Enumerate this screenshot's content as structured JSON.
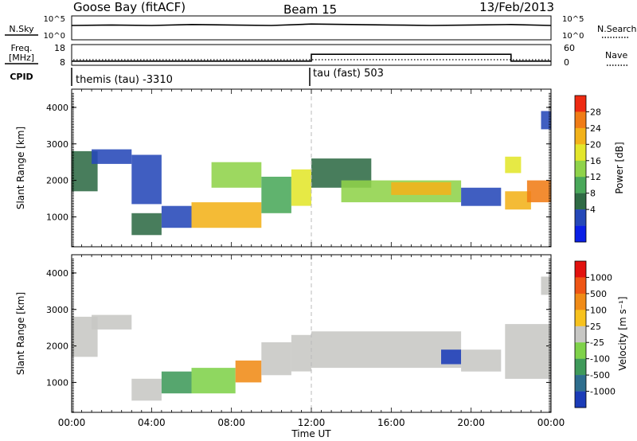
{
  "header": {
    "station": "Goose Bay (fitACF)",
    "beam": "Beam 15",
    "date": "13/Feb/2013"
  },
  "chart_data": [
    {
      "type": "line",
      "name": "nsky-nsearch-panel",
      "left_label": "N.Sky",
      "right_label": "N.Search",
      "left_ticks": [
        "10^5",
        "10^0"
      ],
      "right_ticks": [
        "10^5",
        "10^0"
      ],
      "series": [
        {
          "name": "N.Sky",
          "x": [
            "00:00",
            "02:00",
            "04:00",
            "06:00",
            "08:00",
            "10:00",
            "12:00",
            "14:00",
            "16:00",
            "18:00",
            "20:00",
            "22:00",
            "24:00"
          ],
          "values": [
            3.0,
            3.1,
            3.0,
            3.2,
            3.1,
            3.0,
            3.3,
            3.2,
            3.1,
            3.0,
            3.1,
            3.2,
            3.0
          ]
        },
        {
          "name": "N.Search",
          "values": [
            1,
            1,
            1,
            1,
            1,
            1,
            1,
            1,
            1,
            1,
            1,
            1,
            1
          ]
        }
      ]
    },
    {
      "type": "line",
      "name": "freq-nave-panel",
      "left_label_line1": "Freq.",
      "left_label_line2": "[MHz]",
      "right_label": "Nave",
      "left_ticks": [
        "18",
        "8"
      ],
      "right_ticks": [
        "60",
        "0"
      ],
      "series": [
        {
          "name": "Freq",
          "x": [
            "00:00",
            "12:00",
            "12:00",
            "22:00",
            "22:00",
            "24:00"
          ],
          "values": [
            10.0,
            10.0,
            13.3,
            13.3,
            10.0,
            10.0
          ]
        },
        {
          "name": "Nave",
          "values": [
            0,
            0,
            0,
            0,
            0,
            0
          ]
        }
      ]
    },
    {
      "type": "table",
      "name": "cpid-panel",
      "label": "CPID",
      "segments": [
        {
          "start": "00:00",
          "text": "themis (tau) -3310"
        },
        {
          "start": "12:00",
          "text": "tau (fast) 503"
        }
      ]
    },
    {
      "type": "heatmap",
      "name": "power-panel",
      "ylabel": "Slant Range [km]",
      "yticks": [
        1000,
        2000,
        3000,
        4000
      ],
      "ylim": [
        180,
        4500
      ],
      "colorbar_label": "Power [dB]",
      "colorbar_ticks": [
        "28",
        "24",
        "20",
        "16",
        "12",
        "8",
        "4"
      ],
      "colors": [
        "#0a1fe6",
        "#2548b8",
        "#2f6b45",
        "#4aa85a",
        "#8fd34a",
        "#e3e62b",
        "#f2b21a",
        "#f07c16",
        "#ee2a12"
      ],
      "patches": [
        {
          "t0": 0.0,
          "t1": 1.3,
          "r0": 1700,
          "r1": 2800,
          "c": 2
        },
        {
          "t0": 1.0,
          "t1": 3.0,
          "r0": 2450,
          "r1": 2850,
          "c": 1
        },
        {
          "t0": 3.0,
          "t1": 4.5,
          "r0": 1350,
          "r1": 2700,
          "c": 1
        },
        {
          "t0": 3.0,
          "t1": 4.5,
          "r0": 500,
          "r1": 1100,
          "c": 2
        },
        {
          "t0": 4.5,
          "t1": 6.0,
          "r0": 700,
          "r1": 1300,
          "c": 1
        },
        {
          "t0": 6.0,
          "t1": 9.5,
          "r0": 700,
          "r1": 1400,
          "c": 6
        },
        {
          "t0": 7.0,
          "t1": 9.5,
          "r0": 1800,
          "r1": 2500,
          "c": 4
        },
        {
          "t0": 9.5,
          "t1": 11.0,
          "r0": 1100,
          "r1": 2100,
          "c": 3
        },
        {
          "t0": 11.0,
          "t1": 12.0,
          "r0": 1300,
          "r1": 2300,
          "c": 5
        },
        {
          "t0": 12.0,
          "t1": 15.0,
          "r0": 1800,
          "r1": 2600,
          "c": 2
        },
        {
          "t0": 13.5,
          "t1": 19.5,
          "r0": 1400,
          "r1": 2000,
          "c": 4
        },
        {
          "t0": 16.0,
          "t1": 19.0,
          "r0": 1600,
          "r1": 1950,
          "c": 6
        },
        {
          "t0": 19.5,
          "t1": 21.5,
          "r0": 1300,
          "r1": 1800,
          "c": 1
        },
        {
          "t0": 21.7,
          "t1": 22.5,
          "r0": 2200,
          "r1": 2650,
          "c": 5
        },
        {
          "t0": 21.7,
          "t1": 23.0,
          "r0": 1200,
          "r1": 1700,
          "c": 6
        },
        {
          "t0": 22.8,
          "t1": 24.0,
          "r0": 1400,
          "r1": 2000,
          "c": 7
        },
        {
          "t0": 23.5,
          "t1": 24.0,
          "r0": 3400,
          "r1": 3900,
          "c": 1
        }
      ]
    },
    {
      "type": "heatmap",
      "name": "velocity-panel",
      "ylabel": "Slant Range [km]",
      "xlabel": "Time UT",
      "xticks": [
        "00:00",
        "04:00",
        "08:00",
        "12:00",
        "16:00",
        "20:00",
        "00:00"
      ],
      "yticks": [
        1000,
        2000,
        3000,
        4000
      ],
      "ylim": [
        180,
        4500
      ],
      "colorbar_label": "Velocity [m s⁻¹]",
      "colorbar_ticks": [
        "1000",
        "500",
        "100",
        "25",
        "-25",
        "-100",
        "-500",
        "-1000"
      ],
      "colors": [
        "#1b3cb8",
        "#2e6e8e",
        "#3f9a5a",
        "#7fd24a",
        "#c7c7c4",
        "#f7c21e",
        "#f08b17",
        "#ef5515",
        "#e2120f"
      ],
      "patches": [
        {
          "t0": 0.0,
          "t1": 1.3,
          "r0": 1700,
          "r1": 2800,
          "c": 4
        },
        {
          "t0": 1.0,
          "t1": 3.0,
          "r0": 2450,
          "r1": 2850,
          "c": 4
        },
        {
          "t0": 3.0,
          "t1": 4.5,
          "r0": 500,
          "r1": 1100,
          "c": 4
        },
        {
          "t0": 4.5,
          "t1": 6.0,
          "r0": 700,
          "r1": 1300,
          "c": 2
        },
        {
          "t0": 6.0,
          "t1": 8.2,
          "r0": 700,
          "r1": 1400,
          "c": 3
        },
        {
          "t0": 8.2,
          "t1": 9.5,
          "r0": 1000,
          "r1": 1600,
          "c": 6
        },
        {
          "t0": 9.5,
          "t1": 11.0,
          "r0": 1200,
          "r1": 2100,
          "c": 4
        },
        {
          "t0": 11.0,
          "t1": 12.0,
          "r0": 1300,
          "r1": 2300,
          "c": 4
        },
        {
          "t0": 12.0,
          "t1": 19.5,
          "r0": 1400,
          "r1": 2400,
          "c": 4
        },
        {
          "t0": 18.5,
          "t1": 19.5,
          "r0": 1500,
          "r1": 1900,
          "c": 0
        },
        {
          "t0": 19.5,
          "t1": 21.5,
          "r0": 1300,
          "r1": 1900,
          "c": 4
        },
        {
          "t0": 21.7,
          "t1": 24.0,
          "r0": 1100,
          "r1": 2600,
          "c": 4
        },
        {
          "t0": 23.5,
          "t1": 24.0,
          "r0": 3400,
          "r1": 3900,
          "c": 4
        }
      ]
    }
  ]
}
